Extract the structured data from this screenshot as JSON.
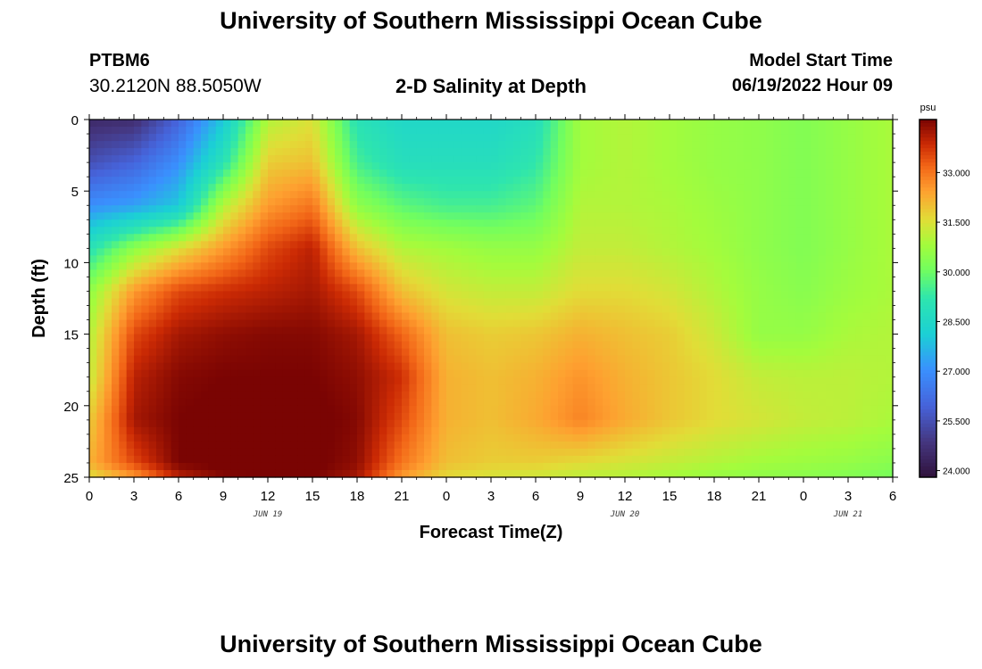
{
  "header": {
    "title": "University of Southern Mississippi Ocean Cube",
    "station": "PTBM6",
    "coords": "30.2120N  88.5050W",
    "subtitle": "2-D Salinity at Depth",
    "model_start_label": "Model Start Time",
    "model_start_value": "06/19/2022 Hour 09"
  },
  "footer": {
    "title": "University of Southern Mississippi Ocean Cube"
  },
  "chart_data": {
    "type": "heatmap",
    "title": "2-D Salinity at Depth",
    "xlabel": "Forecast Time(Z)",
    "ylabel": "Depth (ft)",
    "x_hours": [
      0,
      3,
      6,
      9,
      12,
      15,
      18,
      21,
      24,
      27,
      30,
      33,
      36,
      39,
      42,
      45,
      48,
      51,
      54
    ],
    "x_tick_labels": [
      "0",
      "3",
      "6",
      "9",
      "12",
      "15",
      "18",
      "21",
      "0",
      "3",
      "6",
      "9",
      "12",
      "15",
      "18",
      "21",
      "0",
      "3",
      "6"
    ],
    "x_range": [
      0,
      54
    ],
    "day_labels": [
      {
        "label": "JUN 19",
        "hour": 12
      },
      {
        "label": "JUN 20",
        "hour": 36
      },
      {
        "label": "JUN 21",
        "hour": 51
      }
    ],
    "y_ticks": [
      0,
      5,
      10,
      15,
      20,
      25
    ],
    "y_range": [
      0,
      25
    ],
    "colorbar": {
      "unit": "psu",
      "min": 23.8,
      "max": 34.6,
      "ticks": [
        "24.000",
        "25.500",
        "27.000",
        "28.500",
        "30.000",
        "31.500",
        "33.000"
      ],
      "tick_values": [
        24.0,
        25.5,
        27.0,
        28.5,
        30.0,
        31.5,
        33.0
      ]
    },
    "series": [
      {
        "name": "depth 0 ft",
        "depth": 0,
        "x_hours": [
          0,
          3,
          6,
          9,
          12,
          15,
          18,
          21,
          24,
          27,
          30,
          33,
          36,
          39,
          42,
          45,
          48,
          51,
          54
        ],
        "values": [
          24.5,
          24.6,
          26.0,
          28.0,
          31.0,
          31.5,
          29.0,
          28.5,
          28.5,
          28.5,
          28.8,
          30.8,
          31.0,
          30.8,
          30.6,
          30.5,
          30.3,
          30.6,
          30.9
        ]
      },
      {
        "name": "depth 3 ft",
        "depth": 3,
        "x_hours": [
          0,
          3,
          6,
          9,
          12,
          15,
          18,
          21,
          24,
          27,
          30,
          33,
          36,
          39,
          42,
          45,
          48,
          51,
          54
        ],
        "values": [
          25.5,
          26.0,
          27.0,
          29.0,
          31.8,
          32.0,
          29.5,
          28.8,
          28.8,
          28.8,
          29.2,
          30.8,
          31.0,
          30.8,
          30.6,
          30.5,
          30.3,
          30.6,
          30.9
        ]
      },
      {
        "name": "depth 6 ft",
        "depth": 6,
        "x_hours": [
          0,
          3,
          6,
          9,
          12,
          15,
          18,
          21,
          24,
          27,
          30,
          33,
          36,
          39,
          42,
          45,
          48,
          51,
          54
        ],
        "values": [
          27.0,
          27.3,
          28.0,
          31.0,
          32.5,
          33.0,
          30.5,
          29.8,
          29.5,
          29.5,
          29.8,
          31.0,
          31.0,
          30.9,
          30.7,
          30.5,
          30.3,
          30.6,
          30.9
        ]
      },
      {
        "name": "depth 9 ft",
        "depth": 9,
        "x_hours": [
          0,
          3,
          6,
          9,
          12,
          15,
          18,
          21,
          24,
          27,
          30,
          33,
          36,
          39,
          42,
          45,
          48,
          51,
          54
        ],
        "values": [
          29.0,
          30.5,
          31.5,
          32.5,
          33.5,
          34.0,
          32.0,
          31.0,
          30.8,
          30.6,
          30.6,
          31.2,
          31.2,
          31.0,
          30.8,
          30.5,
          30.3,
          30.6,
          30.9
        ]
      },
      {
        "name": "depth 12 ft",
        "depth": 12,
        "x_hours": [
          0,
          3,
          6,
          9,
          12,
          15,
          18,
          21,
          24,
          27,
          30,
          33,
          36,
          39,
          42,
          45,
          48,
          51,
          54
        ],
        "values": [
          30.5,
          32.5,
          33.5,
          33.8,
          34.0,
          34.2,
          33.5,
          32.0,
          31.4,
          31.2,
          31.2,
          31.6,
          31.6,
          31.4,
          31.0,
          30.6,
          30.4,
          30.7,
          30.9
        ]
      },
      {
        "name": "depth 15 ft",
        "depth": 15,
        "x_hours": [
          0,
          3,
          6,
          9,
          12,
          15,
          18,
          21,
          24,
          27,
          30,
          33,
          36,
          39,
          42,
          45,
          48,
          51,
          54
        ],
        "values": [
          31.0,
          33.5,
          34.2,
          34.4,
          34.5,
          34.5,
          34.2,
          33.2,
          32.0,
          31.8,
          31.9,
          32.2,
          32.0,
          31.8,
          31.3,
          30.6,
          30.6,
          30.9,
          31.0
        ]
      },
      {
        "name": "depth 18 ft",
        "depth": 18,
        "x_hours": [
          0,
          3,
          6,
          9,
          12,
          15,
          18,
          21,
          24,
          27,
          30,
          33,
          36,
          39,
          42,
          45,
          48,
          51,
          54
        ],
        "values": [
          31.2,
          34.0,
          34.5,
          34.6,
          34.6,
          34.6,
          34.4,
          33.8,
          32.2,
          32.0,
          32.2,
          32.6,
          32.2,
          31.9,
          31.6,
          31.2,
          31.1,
          31.1,
          31.0
        ]
      },
      {
        "name": "depth 21 ft",
        "depth": 21,
        "x_hours": [
          0,
          3,
          6,
          9,
          12,
          15,
          18,
          21,
          24,
          27,
          30,
          33,
          36,
          39,
          42,
          45,
          48,
          51,
          54
        ],
        "values": [
          31.8,
          34.2,
          34.6,
          34.7,
          34.7,
          34.7,
          34.5,
          33.5,
          32.2,
          32.0,
          32.3,
          32.8,
          32.3,
          31.9,
          31.6,
          31.4,
          31.2,
          31.1,
          30.9
        ]
      },
      {
        "name": "depth 24 ft",
        "depth": 24,
        "x_hours": [
          0,
          3,
          6,
          9,
          12,
          15,
          18,
          21,
          24,
          27,
          30,
          33,
          36,
          39,
          42,
          45,
          48,
          51,
          54
        ],
        "values": [
          32.2,
          33.5,
          34.6,
          34.7,
          34.7,
          34.7,
          34.4,
          33.0,
          32.0,
          31.8,
          31.8,
          31.6,
          31.4,
          31.2,
          31.0,
          30.8,
          30.7,
          30.6,
          30.4
        ]
      },
      {
        "name": "depth 25 ft",
        "depth": 25,
        "x_hours": [
          0,
          3,
          6,
          9,
          12,
          15,
          18,
          21,
          24,
          27,
          30,
          33,
          36,
          39,
          42,
          45,
          48,
          51,
          54
        ],
        "values": [
          31.5,
          32.5,
          34.0,
          34.5,
          34.6,
          34.6,
          34.2,
          32.5,
          31.6,
          31.4,
          31.3,
          31.1,
          31.0,
          30.8,
          30.6,
          30.5,
          30.4,
          30.3,
          30.1
        ]
      }
    ]
  }
}
